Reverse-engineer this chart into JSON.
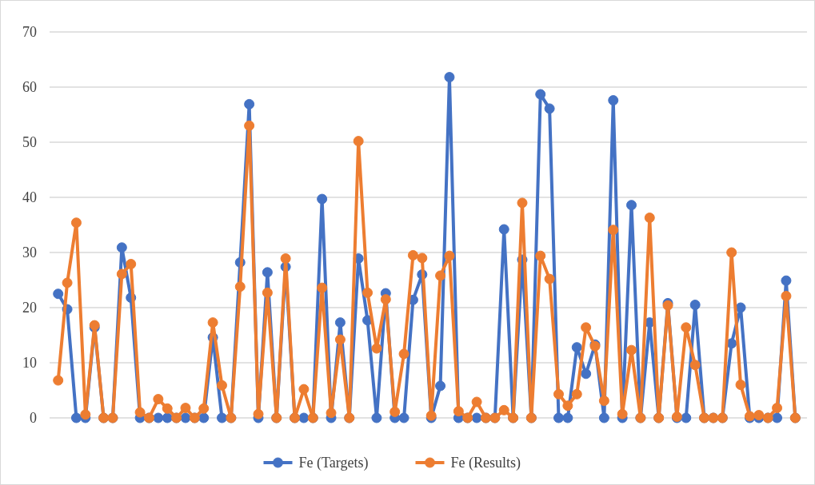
{
  "chart_data": {
    "type": "line",
    "categories": [
      null,
      null,
      null,
      null,
      null,
      null,
      null,
      null,
      null,
      null,
      null,
      null,
      null,
      null,
      null,
      null,
      null,
      null,
      null,
      null,
      null,
      null,
      null,
      null,
      null,
      null,
      null,
      null,
      null,
      null,
      null,
      null,
      null,
      null,
      null,
      null,
      null,
      null,
      null,
      null,
      null,
      null,
      null,
      null,
      null,
      null,
      null,
      null,
      null,
      null,
      null,
      null,
      null,
      null,
      null,
      null,
      null,
      null,
      null,
      null,
      null,
      null,
      null,
      null,
      null,
      null,
      null,
      null,
      null,
      null,
      null,
      null,
      null,
      null,
      null,
      null,
      null,
      null,
      null,
      null,
      null,
      null
    ],
    "series": [
      {
        "name": "Fe (Targets)",
        "color": "#4472c4",
        "values": [
          22.5,
          19.7,
          0,
          0,
          16.4,
          0,
          0,
          30.9,
          21.8,
          0,
          0,
          0,
          0,
          0,
          0,
          0,
          0,
          14.6,
          0,
          0,
          28.2,
          56.9,
          0,
          26.4,
          0,
          27.4,
          0,
          0,
          0,
          39.7,
          0,
          17.3,
          0,
          28.9,
          17.7,
          0,
          22.6,
          0,
          0,
          21.4,
          26,
          0,
          5.8,
          61.8,
          0,
          0,
          0,
          0,
          0,
          34.2,
          0,
          28.7,
          0,
          58.7,
          56.1,
          0,
          0,
          12.8,
          8,
          13.3,
          0,
          57.6,
          0,
          38.6,
          0,
          17.3,
          0,
          20.8,
          0,
          0,
          20.5,
          0,
          0,
          0,
          13.5,
          20,
          0,
          0,
          0,
          0,
          24.9,
          0
        ]
      },
      {
        "name": "Fe (Results)",
        "color": "#ed7d31",
        "values": [
          6.8,
          24.5,
          35.4,
          0.6,
          16.8,
          0,
          0,
          26.1,
          27.9,
          1,
          0,
          3.4,
          1.7,
          0,
          1.8,
          0,
          1.7,
          17.3,
          5.9,
          0,
          23.8,
          53,
          0.7,
          22.7,
          0,
          28.9,
          0,
          5.2,
          0,
          23.6,
          0.9,
          14.2,
          0,
          50.2,
          22.7,
          12.6,
          21.5,
          1.1,
          11.6,
          29.5,
          29,
          0.4,
          25.8,
          29.4,
          1.2,
          0,
          2.9,
          0,
          0,
          1.4,
          0,
          39,
          0,
          29.4,
          25.2,
          4.3,
          2.2,
          4.3,
          16.4,
          13,
          3.1,
          34.1,
          0.7,
          12.3,
          0,
          36.3,
          0,
          20.4,
          0.2,
          16.4,
          9.6,
          0,
          0,
          0,
          30,
          6,
          0.3,
          0.5,
          0,
          1.8,
          22.1,
          0
        ]
      }
    ],
    "ylim": [
      0,
      70
    ],
    "yticks": [
      0,
      10,
      20,
      30,
      40,
      50,
      60,
      70
    ],
    "grid": "y",
    "legend": "bottom",
    "marker": "circle",
    "line_style": "solid"
  }
}
